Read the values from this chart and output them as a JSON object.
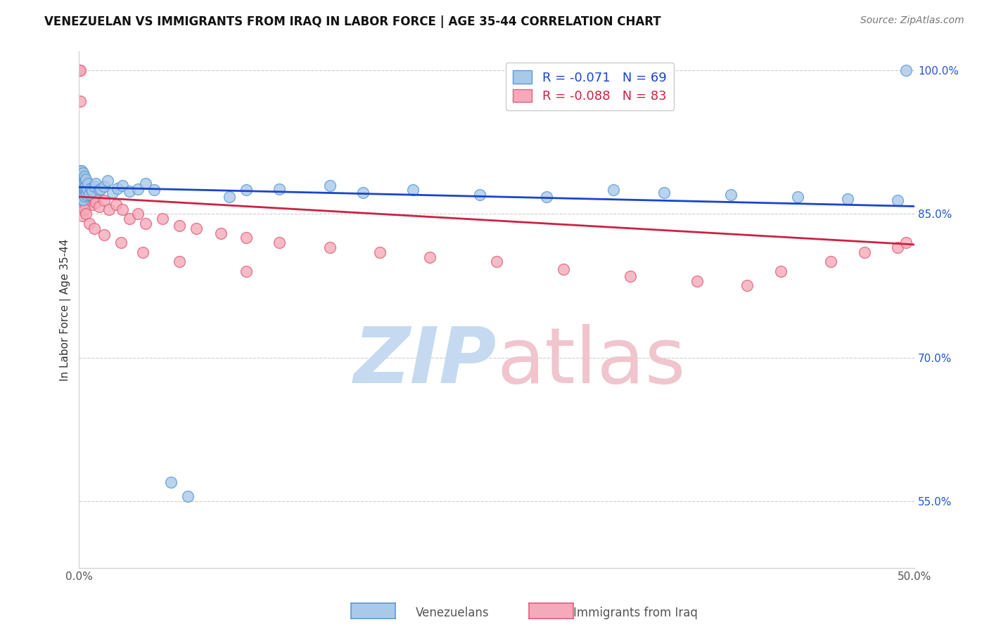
{
  "title": "VENEZUELAN VS IMMIGRANTS FROM IRAQ IN LABOR FORCE | AGE 35-44 CORRELATION CHART",
  "source": "Source: ZipAtlas.com",
  "ylabel": "In Labor Force | Age 35-44",
  "r_venezuelan": -0.071,
  "n_venezuelan": 69,
  "r_iraq": -0.088,
  "n_iraq": 83,
  "xlim": [
    0.0,
    0.5
  ],
  "ylim": [
    0.48,
    1.02
  ],
  "ytick_labels_show": [
    0.55,
    0.7,
    0.85,
    1.0
  ],
  "blue_color": "#aac9e8",
  "pink_color": "#f5aabb",
  "blue_edge": "#5b9bd5",
  "pink_edge": "#e0607a",
  "trendline_blue": "#1a44cc",
  "trendline_pink": "#cc2244",
  "watermark_zip_color": "#c5daf0",
  "watermark_atlas_color": "#f0c5ce",
  "background_color": "#ffffff",
  "ven_slope": -0.04,
  "ven_intercept": 0.878,
  "iraq_slope": -0.1,
  "iraq_intercept": 0.868,
  "venezuelan_x": [
    0.0005,
    0.0008,
    0.001,
    0.001,
    0.0012,
    0.0013,
    0.0014,
    0.0015,
    0.0015,
    0.0016,
    0.0017,
    0.0018,
    0.0018,
    0.0019,
    0.002,
    0.002,
    0.0021,
    0.0022,
    0.0023,
    0.0024,
    0.0025,
    0.0026,
    0.0027,
    0.0028,
    0.003,
    0.003,
    0.0032,
    0.0033,
    0.0035,
    0.0036,
    0.0038,
    0.004,
    0.0042,
    0.0045,
    0.005,
    0.0055,
    0.006,
    0.007,
    0.008,
    0.009,
    0.01,
    0.012,
    0.013,
    0.015,
    0.017,
    0.02,
    0.023,
    0.026,
    0.03,
    0.035,
    0.04,
    0.045,
    0.055,
    0.065,
    0.09,
    0.1,
    0.12,
    0.15,
    0.17,
    0.2,
    0.24,
    0.28,
    0.32,
    0.35,
    0.39,
    0.43,
    0.46,
    0.49,
    0.495
  ],
  "venezuelan_y": [
    0.878,
    0.882,
    0.875,
    0.888,
    0.87,
    0.892,
    0.865,
    0.88,
    0.895,
    0.872,
    0.885,
    0.868,
    0.877,
    0.89,
    0.882,
    0.871,
    0.876,
    0.888,
    0.865,
    0.893,
    0.879,
    0.886,
    0.87,
    0.883,
    0.875,
    0.889,
    0.877,
    0.869,
    0.884,
    0.875,
    0.878,
    0.88,
    0.886,
    0.87,
    0.876,
    0.882,
    0.871,
    0.877,
    0.874,
    0.879,
    0.882,
    0.875,
    0.876,
    0.879,
    0.885,
    0.872,
    0.877,
    0.88,
    0.874,
    0.876,
    0.882,
    0.875,
    0.57,
    0.555,
    0.868,
    0.875,
    0.876,
    0.88,
    0.872,
    0.875,
    0.87,
    0.868,
    0.875,
    0.872,
    0.87,
    0.868,
    0.866,
    0.864,
    1.0
  ],
  "iraq_x": [
    0.0003,
    0.0005,
    0.0006,
    0.0008,
    0.0008,
    0.001,
    0.001,
    0.0011,
    0.0012,
    0.0012,
    0.0013,
    0.0014,
    0.0014,
    0.0015,
    0.0016,
    0.0017,
    0.0018,
    0.0018,
    0.0019,
    0.002,
    0.002,
    0.0021,
    0.0022,
    0.0023,
    0.0024,
    0.0025,
    0.0026,
    0.0027,
    0.003,
    0.003,
    0.0032,
    0.0033,
    0.0035,
    0.004,
    0.0042,
    0.0045,
    0.005,
    0.006,
    0.007,
    0.008,
    0.009,
    0.01,
    0.012,
    0.015,
    0.018,
    0.022,
    0.026,
    0.03,
    0.035,
    0.04,
    0.05,
    0.06,
    0.07,
    0.085,
    0.1,
    0.12,
    0.15,
    0.18,
    0.21,
    0.25,
    0.29,
    0.33,
    0.37,
    0.4,
    0.42,
    0.45,
    0.47,
    0.49,
    0.495,
    0.0016,
    0.0019,
    0.0023,
    0.0028,
    0.0034,
    0.004,
    0.006,
    0.009,
    0.015,
    0.025,
    0.038,
    0.06,
    0.1
  ],
  "iraq_y": [
    1.0,
    1.0,
    0.968,
    0.88,
    0.895,
    0.87,
    0.885,
    0.862,
    0.878,
    0.89,
    0.868,
    0.882,
    0.875,
    0.888,
    0.871,
    0.879,
    0.865,
    0.883,
    0.87,
    0.876,
    0.888,
    0.864,
    0.88,
    0.872,
    0.886,
    0.868,
    0.877,
    0.86,
    0.874,
    0.88,
    0.865,
    0.872,
    0.876,
    0.868,
    0.875,
    0.862,
    0.87,
    0.866,
    0.874,
    0.86,
    0.868,
    0.862,
    0.858,
    0.864,
    0.855,
    0.86,
    0.855,
    0.845,
    0.85,
    0.84,
    0.845,
    0.838,
    0.835,
    0.83,
    0.825,
    0.82,
    0.815,
    0.81,
    0.805,
    0.8,
    0.792,
    0.785,
    0.78,
    0.775,
    0.79,
    0.8,
    0.81,
    0.815,
    0.82,
    0.855,
    0.848,
    0.858,
    0.862,
    0.855,
    0.85,
    0.84,
    0.835,
    0.828,
    0.82,
    0.81,
    0.8,
    0.79
  ]
}
